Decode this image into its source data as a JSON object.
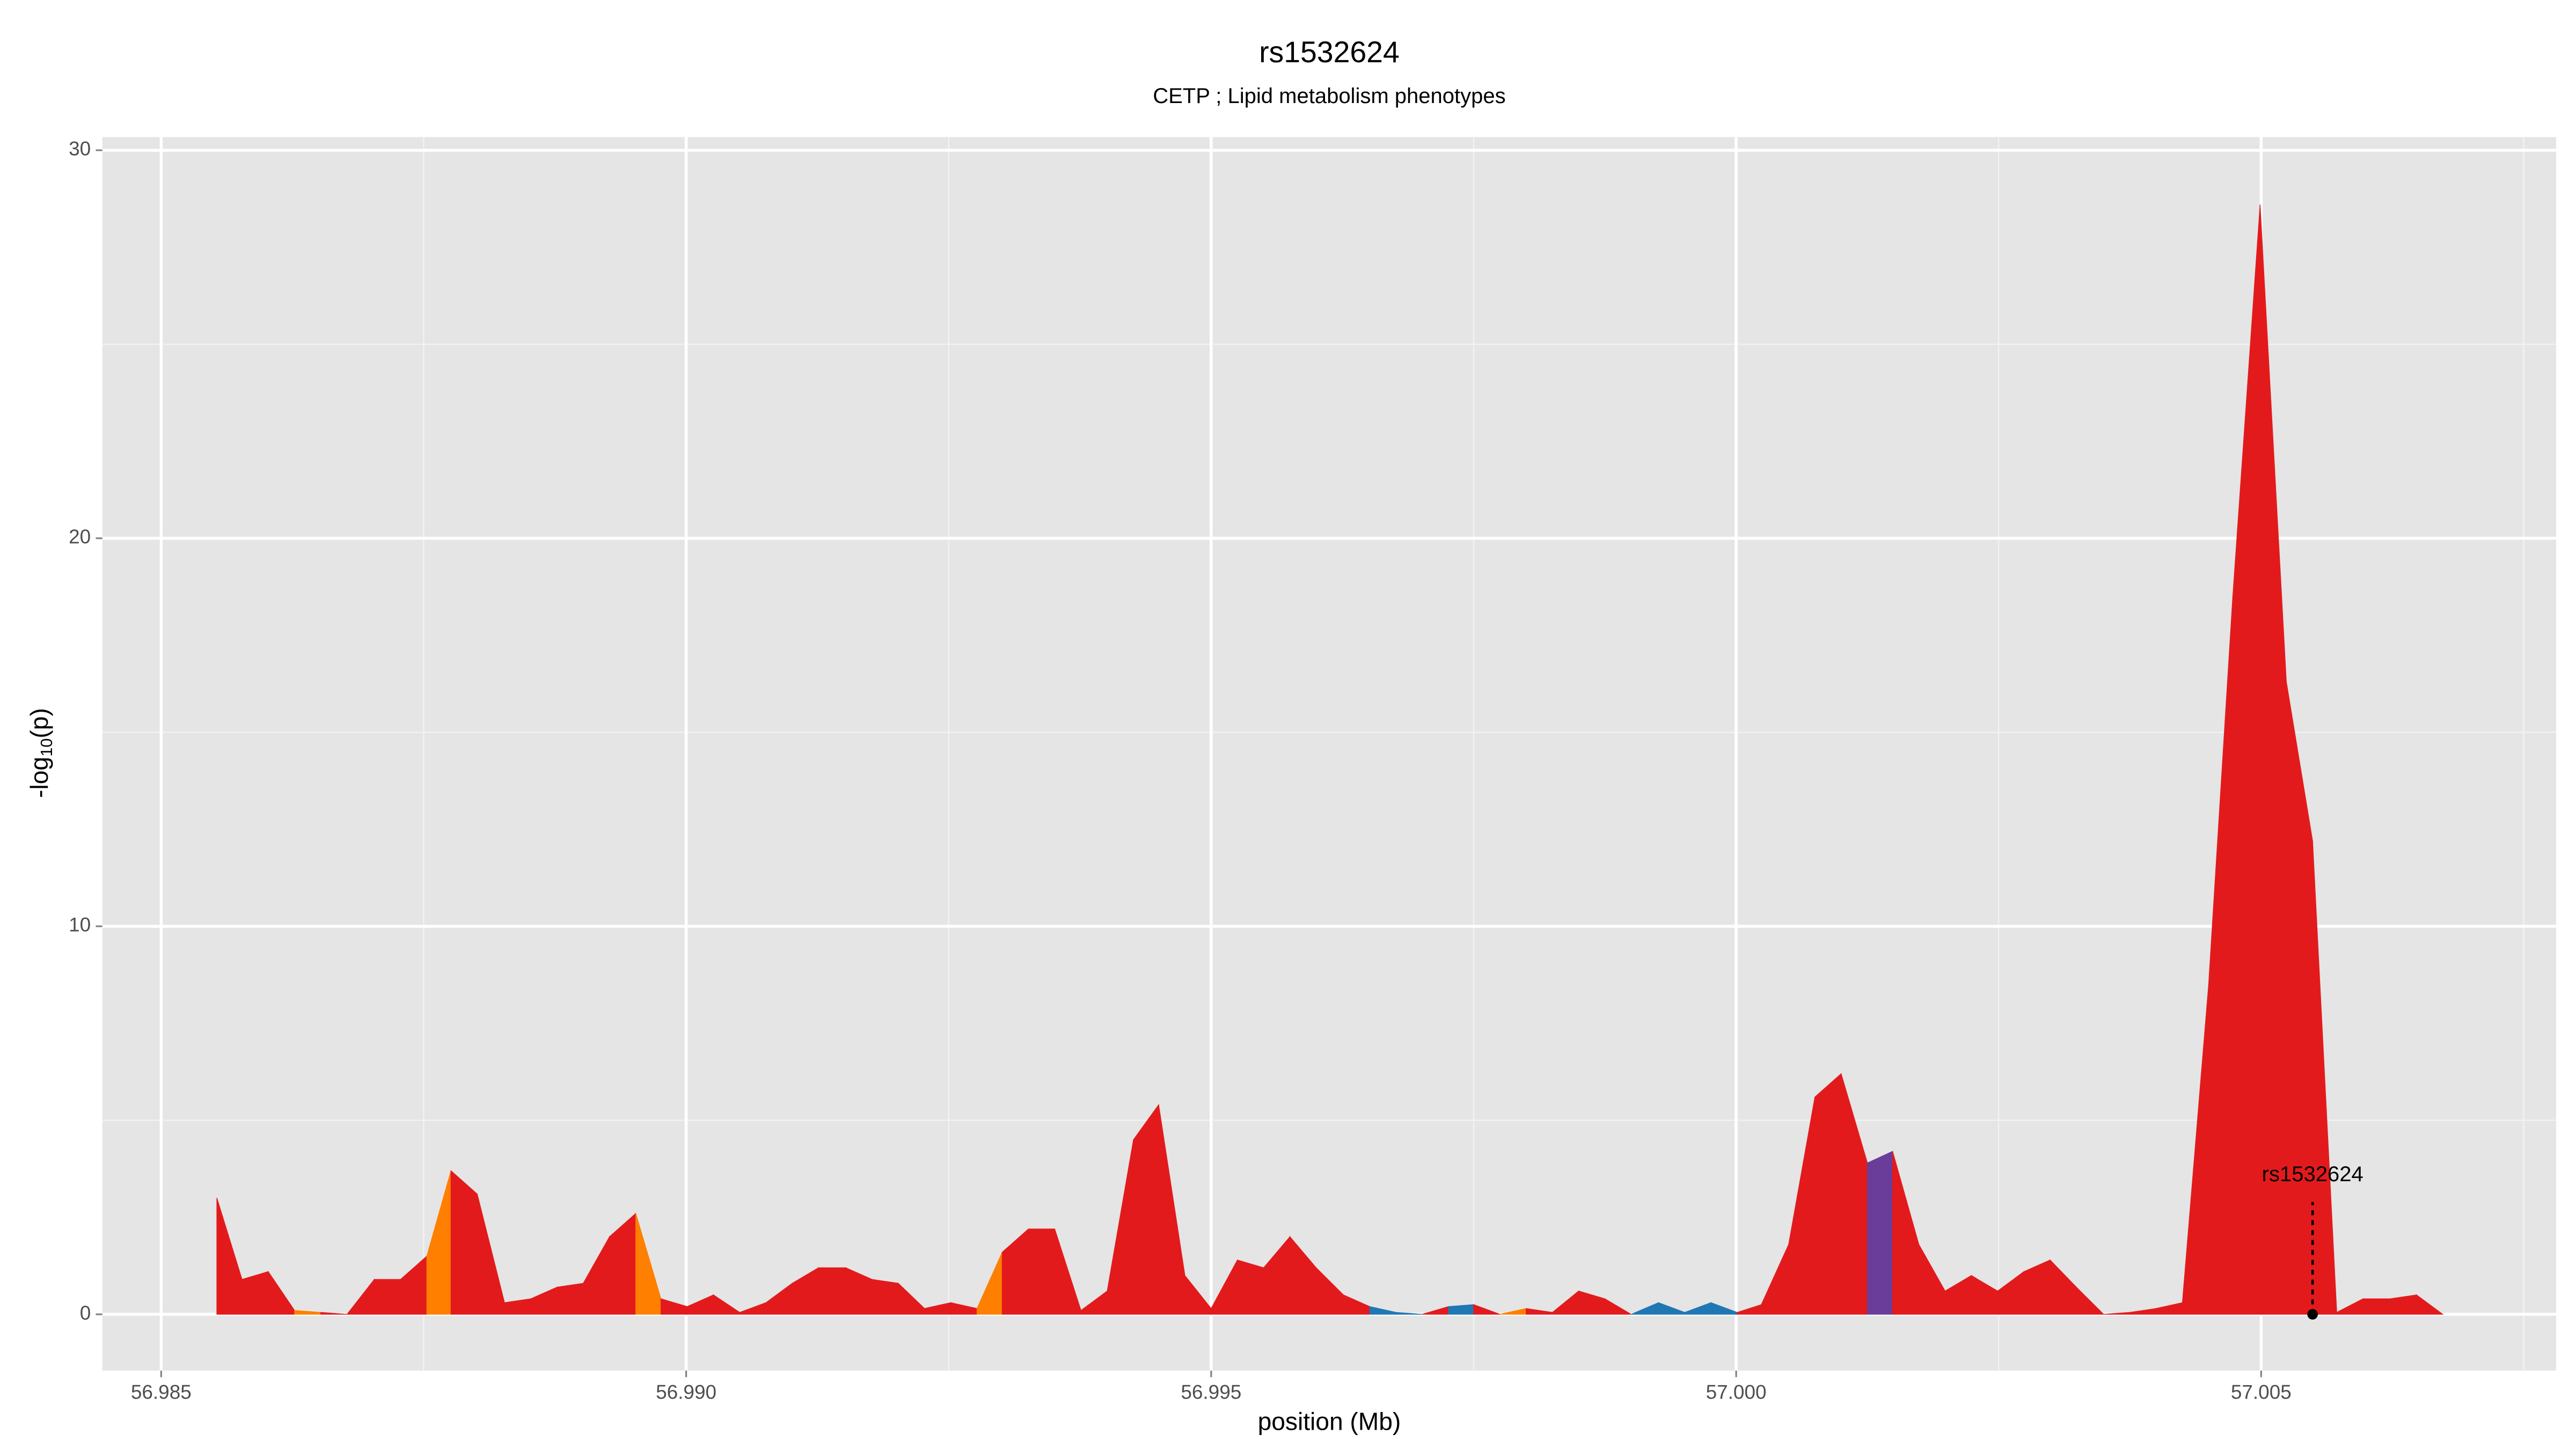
{
  "chart_data": {
    "type": "area",
    "title": "rs1532624",
    "subtitle": "CETP ; Lipid metabolism phenotypes",
    "xlabel": "position (Mb)",
    "ylabel_parts": [
      "-log",
      "10",
      "(p)"
    ],
    "xlim": [
      56.98444,
      57.00781
    ],
    "ylim": [
      -1.45,
      30.34
    ],
    "xticks": [
      56.985,
      {
        "value": 56.99,
        "label": "56.990"
      },
      56.995,
      {
        "value": 57,
        "label": "57.000"
      },
      57.005
    ],
    "yticks": [
      0,
      10,
      20,
      30
    ],
    "grid": true,
    "series": [
      {
        "x": [
          56.98553,
          56.98577,
          56.98602,
          56.98627,
          56.98652,
          56.98677,
          56.98703,
          56.98728,
          56.98753,
          56.98776,
          56.98801,
          56.98827,
          56.98852,
          56.98877,
          56.98902,
          56.98927,
          56.98952,
          56.98976,
          56.99001,
          56.99026,
          56.99051,
          56.99076,
          56.99101,
          56.99126,
          56.99152,
          56.99177,
          56.99202,
          56.99227,
          56.99252,
          56.99277,
          56.99301,
          56.99326,
          56.99351,
          56.99376,
          56.99401,
          56.99426,
          56.9945,
          56.99475,
          56.995,
          56.99525,
          56.9955,
          56.99575,
          56.996,
          56.99626,
          56.99651,
          56.99676,
          56.99701,
          56.99726,
          56.9975,
          56.99775,
          56.998,
          56.99825,
          56.9985,
          56.99875,
          56.999,
          56.99926,
          56.99951,
          56.99976,
          57.00001,
          57.00024,
          57.0005,
          57.00075,
          57.001,
          57.00125,
          57.00149,
          57.00174,
          57.00199,
          57.00224,
          57.00249,
          57.00274,
          57.00299,
          57.00324,
          57.0035,
          57.00375,
          57.004,
          57.00425,
          57.0045,
          57.00473,
          57.00499,
          57.00524,
          57.00549,
          57.00572,
          57.00597,
          57.00623,
          57.00648,
          57.00673
        ],
        "values": [
          3.0,
          0.9,
          1.1,
          0.1,
          0.05,
          0,
          0.9,
          0.9,
          1.5,
          3.7,
          3.1,
          0.3,
          0.4,
          0.7,
          0.8,
          2.0,
          2.6,
          0.4,
          0.2,
          0.5,
          0.05,
          0.3,
          0.8,
          1.2,
          1.2,
          0.9,
          0.8,
          0.15,
          0.3,
          0.15,
          1.6,
          2.2,
          2.2,
          0.1,
          0.6,
          4.5,
          5.4,
          1.0,
          0.15,
          1.4,
          1.2,
          2.0,
          1.2,
          0.5,
          0.2,
          0.05,
          0,
          0.2,
          0.25,
          0,
          0.15,
          0.05,
          0.6,
          0.4,
          0,
          0.3,
          0.05,
          0.3,
          0.05,
          0.25,
          1.8,
          5.6,
          6.2,
          3.9,
          4.2,
          1.8,
          0.6,
          1.0,
          0.6,
          1.1,
          1.4,
          0.7,
          0,
          0.05,
          0.15,
          0.3,
          8.5,
          18.5,
          28.6,
          16.3,
          12.2,
          0.05,
          0.4,
          0.4,
          0.5,
          0
        ],
        "colors": [
          "#e31a1c",
          "#e31a1c",
          "#e31a1c",
          "#ff7f00",
          "#e31a1c",
          "#e31a1c",
          "#e31a1c",
          "#e31a1c",
          "#ff7f00",
          "#e31a1c",
          "#e31a1c",
          "#e31a1c",
          "#e31a1c",
          "#e31a1c",
          "#e31a1c",
          "#e31a1c",
          "#ff7f00",
          "#e31a1c",
          "#e31a1c",
          "#e31a1c",
          "#e31a1c",
          "#e31a1c",
          "#e31a1c",
          "#e31a1c",
          "#e31a1c",
          "#e31a1c",
          "#e31a1c",
          "#e31a1c",
          "#e31a1c",
          "#ff7f00",
          "#e31a1c",
          "#e31a1c",
          "#e31a1c",
          "#e31a1c",
          "#e31a1c",
          "#e31a1c",
          "#e31a1c",
          "#e31a1c",
          "#e31a1c",
          "#e31a1c",
          "#e31a1c",
          "#e31a1c",
          "#e31a1c",
          "#e31a1c",
          "#1f78b4",
          "#1f78b4",
          "#e31a1c",
          "#1f78b4",
          "#e31a1c",
          "#ff7f00",
          "#e31a1c",
          "#e31a1c",
          "#e31a1c",
          "#e31a1c",
          "#1f78b4",
          "#1f78b4",
          "#1f78b4",
          "#1f78b4",
          "#e31a1c",
          "#e31a1c",
          "#e31a1c",
          "#e31a1c",
          "#e31a1c",
          "#6a3d9a",
          "#e31a1c",
          "#e31a1c",
          "#e31a1c",
          "#e31a1c",
          "#e31a1c",
          "#e31a1c",
          "#e31a1c",
          "#e31a1c",
          "#e31a1c",
          "#e31a1c",
          "#e31a1c",
          "#e31a1c",
          "#e31a1c",
          "#e31a1c",
          "#e31a1c",
          "#e31a1c",
          "#e31a1c",
          "#e31a1c",
          "#e31a1c",
          "#e31a1c",
          "#e31a1c",
          "#e31a1c"
        ]
      }
    ],
    "annotations": [
      {
        "label": "rs1532624",
        "x": 57.00549,
        "y": 0
      }
    ]
  }
}
